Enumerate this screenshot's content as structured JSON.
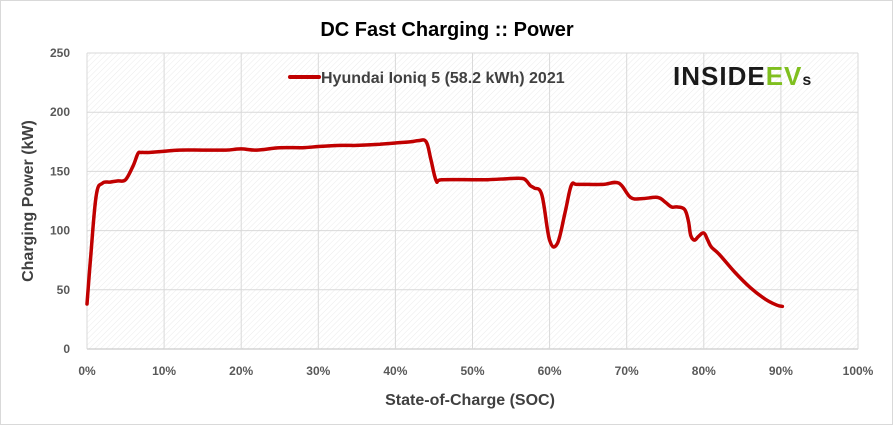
{
  "chart_data": {
    "type": "line",
    "title": "DC Fast Charging :: Power",
    "xlabel": "State-of-Charge  (SOC)",
    "ylabel": "Charging Power (kW)",
    "xlim": [
      0,
      100
    ],
    "ylim": [
      0,
      250
    ],
    "x_ticks": [
      "0%",
      "10%",
      "20%",
      "30%",
      "40%",
      "50%",
      "60%",
      "70%",
      "80%",
      "90%",
      "100%"
    ],
    "y_ticks": [
      "0",
      "50",
      "100",
      "150",
      "200",
      "250"
    ],
    "grid": true,
    "legend_position": "top",
    "series": [
      {
        "name": "Hyundai Ioniq 5 (58.2 kWh) 2021",
        "color": "#c00000",
        "x": [
          0,
          0.5,
          1.2,
          2,
          3,
          4,
          5,
          6,
          6.6,
          7,
          8,
          10,
          12,
          15,
          18,
          20,
          22,
          25,
          28,
          30,
          33,
          35,
          38,
          40,
          42,
          43,
          44,
          44.6,
          45.3,
          46,
          50,
          52,
          55,
          56.5,
          57,
          57.5,
          58,
          59,
          60,
          61,
          62,
          62.8,
          63.5,
          65,
          67,
          69,
          70.5,
          72,
          74,
          75,
          75.8,
          76.5,
          77.5,
          78,
          78.3,
          78.8,
          79.3,
          80,
          80.5,
          81,
          82,
          84,
          86,
          88,
          89.5,
          90.2
        ],
        "y": [
          38,
          80,
          130,
          140,
          141,
          142,
          143,
          155,
          165,
          166,
          166,
          167,
          168,
          168,
          168,
          169,
          168,
          170,
          170,
          171,
          172,
          172,
          173,
          174,
          175,
          176,
          175,
          160,
          142,
          143,
          143,
          143,
          144,
          144,
          142,
          138,
          136,
          130,
          92,
          89,
          115,
          138,
          139,
          139,
          139,
          140,
          128,
          127,
          128,
          124,
          120,
          120,
          118,
          108,
          96,
          92,
          95,
          98,
          92,
          86,
          80,
          65,
          52,
          42,
          37,
          36
        ]
      }
    ]
  },
  "logo": {
    "part1": "INSIDE",
    "part2": "EV",
    "part3": "s"
  },
  "colors": {
    "line": "#c00000",
    "grid": "#d9d9d9",
    "logo_dark": "#1a1a1a",
    "logo_green": "#7fbf1f"
  }
}
